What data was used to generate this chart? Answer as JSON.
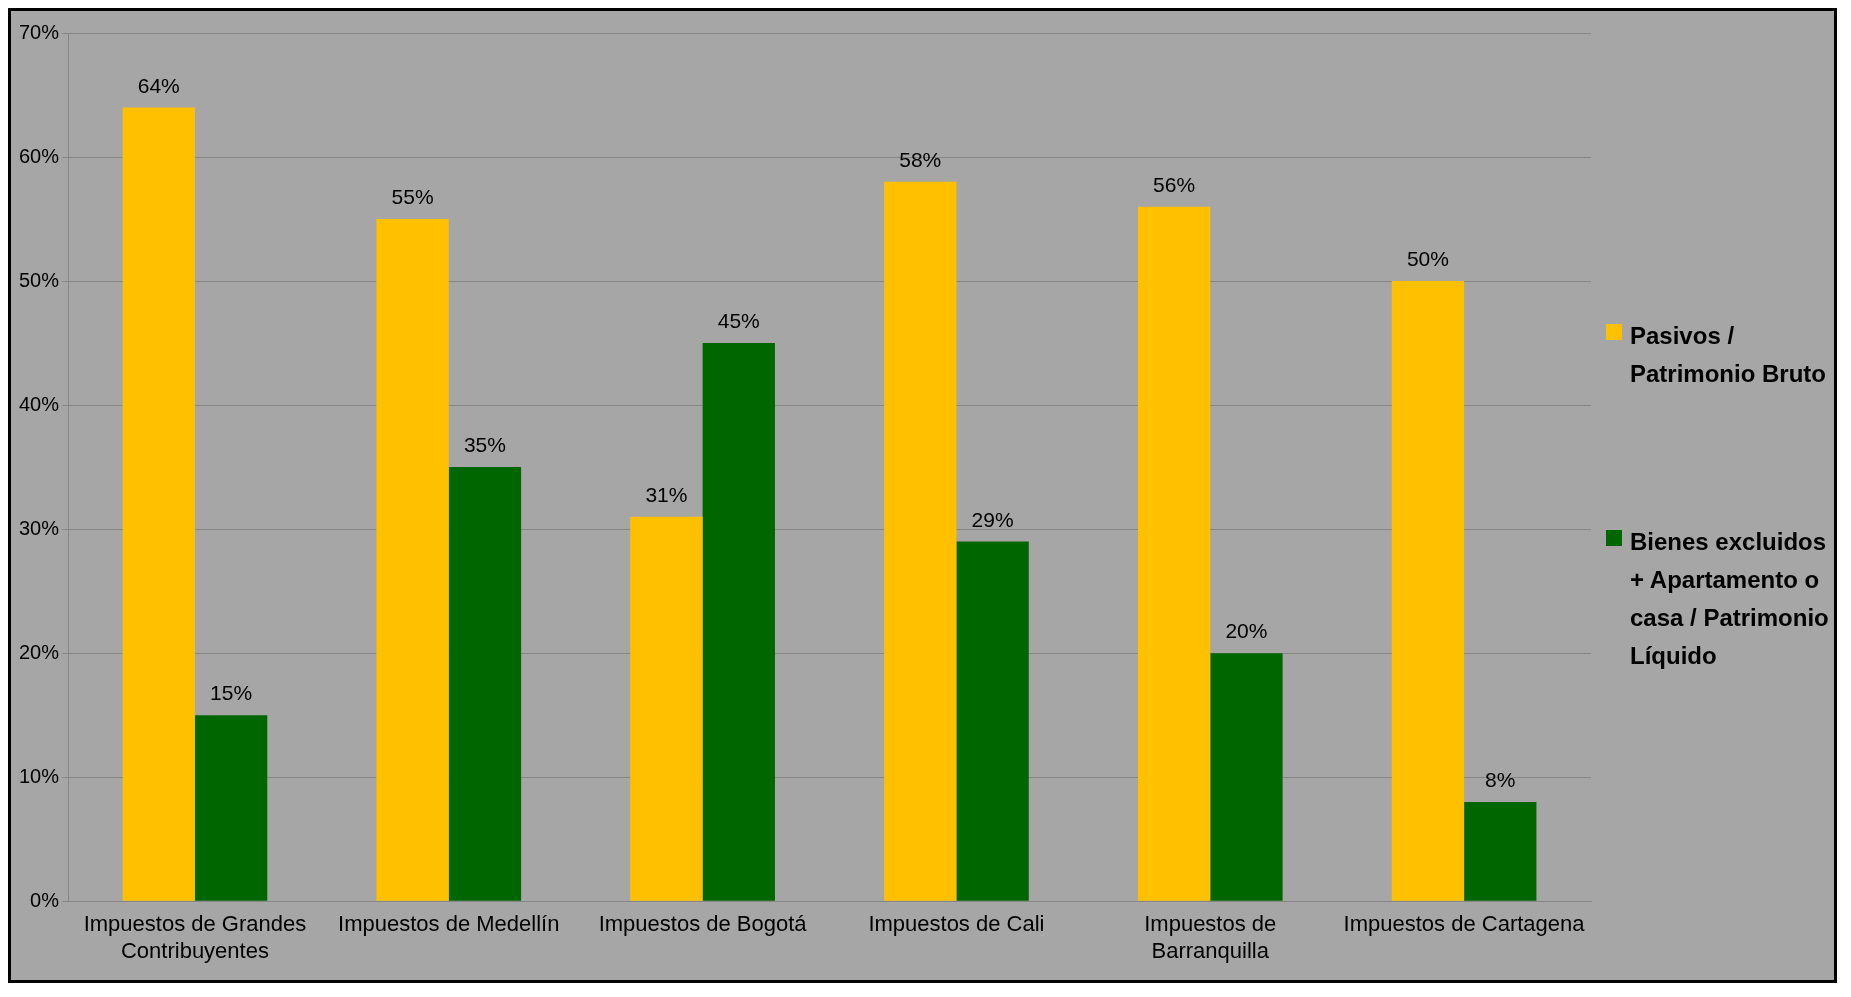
{
  "chart_data": {
    "type": "bar",
    "categories": [
      "Impuestos de Grandes Contribuyentes",
      "Impuestos de Medellín",
      "Impuestos de Bogotá",
      "Impuestos de Cali",
      "Impuestos de Barranquilla",
      "Impuestos de Cartagena"
    ],
    "series": [
      {
        "name": "Pasivos / Patrimonio Bruto",
        "color": "#ffc000",
        "values": [
          64,
          55,
          31,
          58,
          56,
          50
        ],
        "value_labels": [
          "64%",
          "55%",
          "31%",
          "58%",
          "56%",
          "50%"
        ]
      },
      {
        "name": "Bienes excluidos + Apartamento o casa / Patrimonio Líquido",
        "color": "#006600",
        "values": [
          15,
          35,
          45,
          29,
          20,
          8
        ],
        "value_labels": [
          "15%",
          "35%",
          "45%",
          "29%",
          "20%",
          "8%"
        ]
      }
    ],
    "ylim": [
      0,
      70
    ],
    "yticks": [
      {
        "value": 0,
        "label": "0%"
      },
      {
        "value": 10,
        "label": "10%"
      },
      {
        "value": 20,
        "label": "20%"
      },
      {
        "value": 30,
        "label": "30%"
      },
      {
        "value": 40,
        "label": "40%"
      },
      {
        "value": 50,
        "label": "50%"
      },
      {
        "value": 60,
        "label": "60%"
      },
      {
        "value": 70,
        "label": "70%"
      }
    ],
    "grid": "y",
    "legend": "right"
  }
}
